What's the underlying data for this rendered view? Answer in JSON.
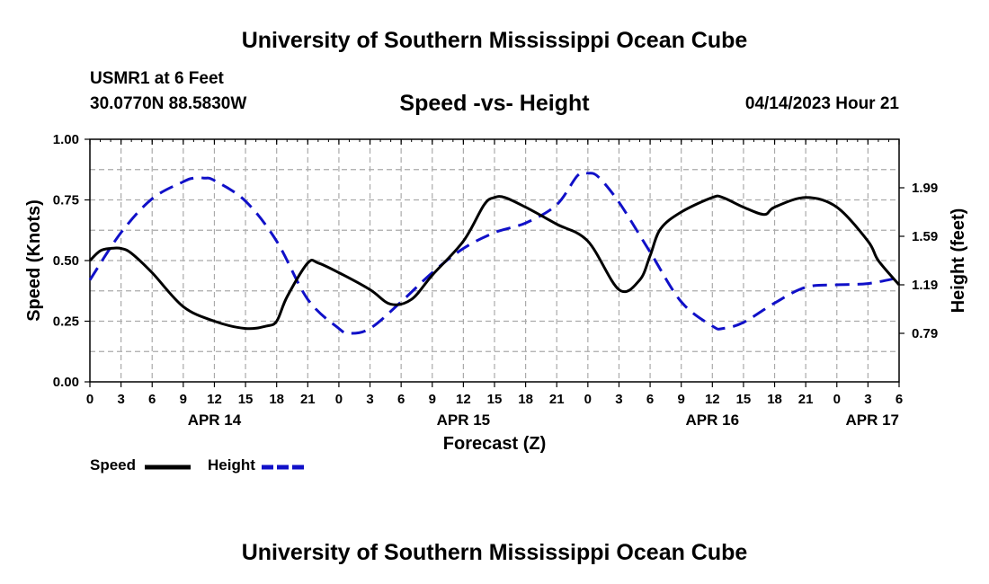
{
  "header": {
    "title": "University of Southern Mississippi Ocean Cube",
    "station_name": "USMR1 at 6 Feet",
    "station_coords": "30.0770N  88.5830W",
    "date": "04/14/2023 Hour 21"
  },
  "footer": {
    "title": "University of Southern Mississippi Ocean Cube"
  },
  "chart_data": {
    "type": "line",
    "title": "Speed -vs- Height",
    "xlabel": "Forecast (Z)",
    "ylabel_left": "Speed (Knots)",
    "ylabel_right": "Height (feet)",
    "x_range_hours": [
      0,
      78
    ],
    "x_start": "04/14/2023 00Z",
    "x_tick_hours": [
      0,
      3,
      6,
      9,
      12,
      15,
      18,
      21,
      24,
      27,
      30,
      33,
      36,
      39,
      42,
      45,
      48,
      51,
      54,
      57,
      60,
      63,
      66,
      69,
      72,
      75,
      78
    ],
    "x_tick_labels": [
      "0",
      "3",
      "6",
      "9",
      "12",
      "15",
      "18",
      "21",
      "0",
      "3",
      "6",
      "9",
      "12",
      "15",
      "18",
      "21",
      "0",
      "3",
      "6",
      "9",
      "12",
      "15",
      "18",
      "21",
      "0",
      "3",
      "6"
    ],
    "date_labels": [
      {
        "label": "APR 14",
        "hour": 12
      },
      {
        "label": "APR 15",
        "hour": 36
      },
      {
        "label": "APR 16",
        "hour": 60
      },
      {
        "label": "APR 17",
        "hour": 78
      }
    ],
    "ylim_left": [
      0,
      1.0
    ],
    "y_ticks_left": [
      "0.00",
      "0.25",
      "0.50",
      "0.75",
      "1.00"
    ],
    "y_tick_values_left": [
      0,
      0.25,
      0.5,
      0.75,
      1.0
    ],
    "ylim_right": [
      0.39,
      2.39
    ],
    "y_ticks_right": [
      "0.79",
      "1.19",
      "1.59",
      "1.99"
    ],
    "y_tick_values_right": [
      0.79,
      1.19,
      1.59,
      1.99
    ],
    "grid": true,
    "legend": {
      "position": "bottom-left",
      "speed_label": "Speed",
      "height_label": "Height"
    },
    "colors": {
      "speed": "#000000",
      "height": "#1010c8",
      "grid": "#aaaaaa"
    },
    "series": [
      {
        "name": "Speed",
        "axis": "left",
        "style": "solid",
        "x": [
          0,
          1,
          2,
          3,
          4,
          6,
          9,
          12,
          15,
          17,
          18,
          19,
          21,
          22,
          24,
          27,
          29,
          31,
          33,
          36,
          38,
          39,
          40,
          42,
          45,
          48,
          51,
          53,
          54,
          55,
          57,
          60,
          61,
          63,
          65,
          66,
          69,
          72,
          75,
          76,
          78
        ],
        "values": [
          0.5,
          0.54,
          0.55,
          0.55,
          0.53,
          0.45,
          0.31,
          0.25,
          0.22,
          0.23,
          0.25,
          0.35,
          0.49,
          0.49,
          0.45,
          0.38,
          0.32,
          0.34,
          0.44,
          0.58,
          0.73,
          0.76,
          0.76,
          0.72,
          0.65,
          0.58,
          0.38,
          0.42,
          0.52,
          0.63,
          0.7,
          0.76,
          0.76,
          0.72,
          0.69,
          0.72,
          0.76,
          0.72,
          0.58,
          0.5,
          0.4
        ]
      },
      {
        "name": "Height",
        "axis": "right",
        "style": "dashed",
        "x": [
          0,
          3,
          6,
          9,
          10,
          11,
          12,
          15,
          18,
          21,
          24,
          25,
          27,
          30,
          33,
          36,
          39,
          42,
          45,
          47,
          48,
          49,
          51,
          54,
          57,
          60,
          61,
          63,
          66,
          69,
          72,
          75,
          78
        ],
        "values": [
          1.23,
          1.62,
          1.9,
          2.04,
          2.07,
          2.07,
          2.05,
          1.88,
          1.55,
          1.07,
          0.83,
          0.79,
          0.83,
          1.05,
          1.29,
          1.49,
          1.62,
          1.7,
          1.85,
          2.09,
          2.11,
          2.08,
          1.87,
          1.46,
          1.05,
          0.85,
          0.83,
          0.88,
          1.04,
          1.17,
          1.19,
          1.2,
          1.25
        ]
      }
    ]
  }
}
